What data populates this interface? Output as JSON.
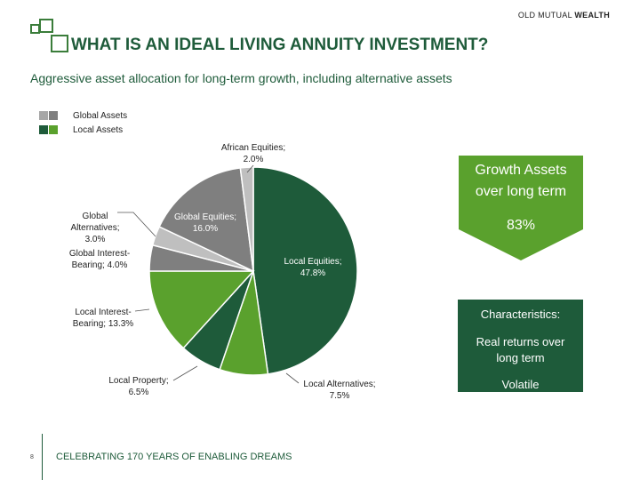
{
  "header": {
    "brand_prefix": "OLD MUTUAL",
    "brand_suffix": "WEALTH",
    "title": "WHAT IS AN IDEAL LIVING ANNUITY INVESTMENT?",
    "subtitle": "Aggressive asset allocation for long-term growth, including alternative assets"
  },
  "colors": {
    "dark_green": "#1e5b3a",
    "medium_green": "#5aa12d",
    "grey_dark": "#7f7f7f",
    "grey_light": "#bfbfbf"
  },
  "chart_data": {
    "type": "pie",
    "legend": [
      {
        "label": "Global Assets",
        "colors": [
          "#a6a6a6",
          "#7f7f7f"
        ]
      },
      {
        "label": "Local Assets",
        "colors": [
          "#1e5b3a",
          "#5aa12d"
        ]
      }
    ],
    "slices": [
      {
        "label": "Local Equities",
        "value": 47.8,
        "display": "Local Equities; 47.8%",
        "color": "#1e5b3a"
      },
      {
        "label": "Local Alternatives",
        "value": 7.5,
        "display": "Local Alternatives; 7.5%",
        "color": "#5aa12d"
      },
      {
        "label": "Local Property",
        "value": 6.5,
        "display": "Local Property; 6.5%",
        "color": "#1e5b3a"
      },
      {
        "label": "Local Interest-Bearing",
        "value": 13.3,
        "display": "Local Interest-Bearing; 13.3%",
        "color": "#5aa12d"
      },
      {
        "label": "Global Interest-Bearing",
        "value": 4.0,
        "display": "Global Interest-Bearing; 4.0%",
        "color": "#7f7f7f"
      },
      {
        "label": "Global Alternatives",
        "value": 3.0,
        "display": "Global Alternatives; 3.0%",
        "color": "#bfbfbf"
      },
      {
        "label": "Global Equities",
        "value": 16.0,
        "display": "Global Equities; 16.0%",
        "color": "#7f7f7f"
      },
      {
        "label": "African Equities",
        "value": 2.0,
        "display": "African Equities; 2.0%",
        "color": "#bfbfbf"
      }
    ]
  },
  "labels": {
    "local_equities_line1": "Local Equities;",
    "local_equities_line2": "47.8%",
    "local_alternatives_line1": "Local Alternatives;",
    "local_alternatives_line2": "7.5%",
    "local_property_line1": "Local Property;",
    "local_property_line2": "6.5%",
    "local_interest_line1": "Local Interest-",
    "local_interest_line2": "Bearing; 13.3%",
    "global_interest_line1": "Global Interest-",
    "global_interest_line2": "Bearing; 4.0%",
    "global_alt_line1": "Global",
    "global_alt_line2": "Alternatives;",
    "global_alt_line3": "3.0%",
    "global_equities_line1": "Global Equities;",
    "global_equities_line2": "16.0%",
    "african_equities_line1": "African Equities;",
    "african_equities_line2": "2.0%"
  },
  "growth": {
    "line1": "Growth Assets",
    "line2": "over long term",
    "percent": "83%"
  },
  "characteristics": {
    "heading": "Characteristics:",
    "item1_line1": "Real returns over",
    "item1_line2": "long term",
    "item2": "Volatile"
  },
  "footer": {
    "page_number": "8",
    "tagline": "CELEBRATING 170 YEARS OF ENABLING DREAMS"
  }
}
